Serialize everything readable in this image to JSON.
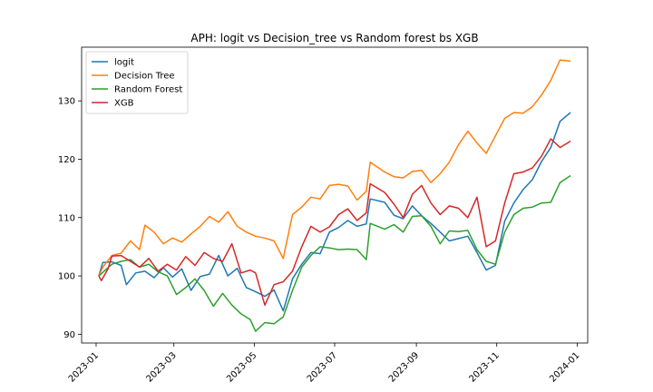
{
  "chart_data": {
    "type": "line",
    "title": "APH: logit vs Decision_tree vs Random forest bs XGB",
    "xlabel": "",
    "ylabel": "",
    "x_ticks": [
      "2023-01",
      "2023-03",
      "2023-05",
      "2023-07",
      "2023-09",
      "2023-11",
      "2024-01"
    ],
    "y_ticks": [
      90,
      100,
      110,
      120,
      130
    ],
    "xlim": [
      "2022-12-21",
      "2024-01-09"
    ],
    "ylim": [
      88.5,
      139.2
    ],
    "grid": false,
    "legend_position": "top-left",
    "series": [
      {
        "name": "logit",
        "color": "#1f77b4",
        "points": [
          [
            "2023-01-03",
            100
          ],
          [
            "2023-01-06",
            102.3
          ],
          [
            "2023-01-13",
            102.4
          ],
          [
            "2023-01-20",
            101.8
          ],
          [
            "2023-01-24",
            98.5
          ],
          [
            "2023-01-31",
            100.5
          ],
          [
            "2023-02-07",
            100.8
          ],
          [
            "2023-02-14",
            99.7
          ],
          [
            "2023-02-21",
            101.4
          ],
          [
            "2023-02-28",
            99.8
          ],
          [
            "2023-03-07",
            101.2
          ],
          [
            "2023-03-14",
            97.5
          ],
          [
            "2023-03-21",
            99.9
          ],
          [
            "2023-03-28",
            100.3
          ],
          [
            "2023-04-04",
            103.5
          ],
          [
            "2023-04-11",
            100.0
          ],
          [
            "2023-04-18",
            101.3
          ],
          [
            "2023-04-25",
            98.0
          ],
          [
            "2023-05-02",
            97.3
          ],
          [
            "2023-05-09",
            96.5
          ],
          [
            "2023-05-16",
            97.6
          ],
          [
            "2023-05-23",
            94.0
          ],
          [
            "2023-05-30",
            99.5
          ],
          [
            "2023-06-06",
            102.0
          ],
          [
            "2023-06-13",
            104.0
          ],
          [
            "2023-06-20",
            103.8
          ],
          [
            "2023-06-27",
            107.5
          ],
          [
            "2023-07-04",
            108.3
          ],
          [
            "2023-07-11",
            109.5
          ],
          [
            "2023-07-18",
            108.5
          ],
          [
            "2023-07-25",
            108.9
          ],
          [
            "2023-07-28",
            113.2
          ],
          [
            "2023-08-08",
            112.6
          ],
          [
            "2023-08-15",
            110.4
          ],
          [
            "2023-08-22",
            109.8
          ],
          [
            "2023-08-29",
            112.0
          ],
          [
            "2023-09-05",
            110.3
          ],
          [
            "2023-09-12",
            109.0
          ],
          [
            "2023-09-19",
            107.5
          ],
          [
            "2023-09-26",
            106.0
          ],
          [
            "2023-10-03",
            106.4
          ],
          [
            "2023-10-10",
            106.8
          ],
          [
            "2023-10-17",
            104.0
          ],
          [
            "2023-10-24",
            101.0
          ],
          [
            "2023-10-31",
            101.8
          ],
          [
            "2023-11-07",
            109.4
          ],
          [
            "2023-11-14",
            112.5
          ],
          [
            "2023-11-21",
            114.8
          ],
          [
            "2023-11-28",
            116.5
          ],
          [
            "2023-12-05",
            119.6
          ],
          [
            "2023-12-12",
            122.0
          ],
          [
            "2023-12-19",
            126.5
          ],
          [
            "2023-12-27",
            128.0
          ]
        ]
      },
      {
        "name": "Decision Tree",
        "color": "#ff7f0e",
        "points": [
          [
            "2023-01-03",
            100
          ],
          [
            "2023-01-06",
            101.5
          ],
          [
            "2023-01-13",
            103.5
          ],
          [
            "2023-01-20",
            103.9
          ],
          [
            "2023-01-27",
            106.0
          ],
          [
            "2023-02-03",
            104.5
          ],
          [
            "2023-02-07",
            108.7
          ],
          [
            "2023-02-14",
            107.5
          ],
          [
            "2023-02-21",
            105.5
          ],
          [
            "2023-02-28",
            106.5
          ],
          [
            "2023-03-07",
            105.8
          ],
          [
            "2023-03-14",
            107.2
          ],
          [
            "2023-03-21",
            108.5
          ],
          [
            "2023-03-28",
            110.2
          ],
          [
            "2023-04-04",
            109.2
          ],
          [
            "2023-04-11",
            111.0
          ],
          [
            "2023-04-18",
            108.5
          ],
          [
            "2023-04-25",
            107.5
          ],
          [
            "2023-05-02",
            106.8
          ],
          [
            "2023-05-09",
            106.5
          ],
          [
            "2023-05-16",
            106.0
          ],
          [
            "2023-05-23",
            103.0
          ],
          [
            "2023-05-30",
            110.5
          ],
          [
            "2023-06-06",
            111.8
          ],
          [
            "2023-06-13",
            113.5
          ],
          [
            "2023-06-20",
            113.2
          ],
          [
            "2023-06-27",
            115.5
          ],
          [
            "2023-07-04",
            115.7
          ],
          [
            "2023-07-11",
            115.4
          ],
          [
            "2023-07-18",
            113.0
          ],
          [
            "2023-07-25",
            114.5
          ],
          [
            "2023-07-28",
            119.5
          ],
          [
            "2023-08-08",
            117.8
          ],
          [
            "2023-08-15",
            117.0
          ],
          [
            "2023-08-22",
            116.8
          ],
          [
            "2023-08-29",
            117.9
          ],
          [
            "2023-09-05",
            118.1
          ],
          [
            "2023-09-12",
            116.0
          ],
          [
            "2023-09-19",
            117.5
          ],
          [
            "2023-09-26",
            119.5
          ],
          [
            "2023-10-03",
            122.5
          ],
          [
            "2023-10-10",
            124.8
          ],
          [
            "2023-10-17",
            122.8
          ],
          [
            "2023-10-24",
            121.0
          ],
          [
            "2023-10-31",
            124.0
          ],
          [
            "2023-11-07",
            127.0
          ],
          [
            "2023-11-14",
            128.0
          ],
          [
            "2023-11-21",
            127.9
          ],
          [
            "2023-11-28",
            129.0
          ],
          [
            "2023-12-05",
            131.0
          ],
          [
            "2023-12-12",
            133.5
          ],
          [
            "2023-12-19",
            137.0
          ],
          [
            "2023-12-27",
            136.8
          ]
        ]
      },
      {
        "name": "Random Forest",
        "color": "#2ca02c",
        "points": [
          [
            "2023-01-03",
            100
          ],
          [
            "2023-01-06",
            100.6
          ],
          [
            "2023-01-13",
            102.0
          ],
          [
            "2023-01-20",
            102.5
          ],
          [
            "2023-01-27",
            102.8
          ],
          [
            "2023-02-03",
            101.5
          ],
          [
            "2023-02-10",
            102.0
          ],
          [
            "2023-02-17",
            100.7
          ],
          [
            "2023-02-24",
            100.0
          ],
          [
            "2023-03-03",
            96.8
          ],
          [
            "2023-03-10",
            98.0
          ],
          [
            "2023-03-17",
            99.5
          ],
          [
            "2023-03-24",
            97.5
          ],
          [
            "2023-03-31",
            94.8
          ],
          [
            "2023-04-07",
            97.0
          ],
          [
            "2023-04-14",
            95.0
          ],
          [
            "2023-04-21",
            93.5
          ],
          [
            "2023-04-28",
            92.5
          ],
          [
            "2023-05-02",
            90.5
          ],
          [
            "2023-05-09",
            92.0
          ],
          [
            "2023-05-16",
            91.8
          ],
          [
            "2023-05-23",
            93.0
          ],
          [
            "2023-05-30",
            97.5
          ],
          [
            "2023-06-06",
            101.5
          ],
          [
            "2023-06-13",
            103.5
          ],
          [
            "2023-06-20",
            105.0
          ],
          [
            "2023-06-27",
            104.8
          ],
          [
            "2023-07-04",
            104.5
          ],
          [
            "2023-07-11",
            104.6
          ],
          [
            "2023-07-18",
            104.5
          ],
          [
            "2023-07-25",
            102.8
          ],
          [
            "2023-07-28",
            109.0
          ],
          [
            "2023-08-08",
            108.0
          ],
          [
            "2023-08-15",
            108.8
          ],
          [
            "2023-08-22",
            107.5
          ],
          [
            "2023-08-29",
            110.2
          ],
          [
            "2023-09-05",
            110.3
          ],
          [
            "2023-09-12",
            108.5
          ],
          [
            "2023-09-19",
            105.5
          ],
          [
            "2023-09-26",
            107.7
          ],
          [
            "2023-10-03",
            107.6
          ],
          [
            "2023-10-10",
            107.8
          ],
          [
            "2023-10-17",
            104.5
          ],
          [
            "2023-10-24",
            102.5
          ],
          [
            "2023-10-31",
            102.0
          ],
          [
            "2023-11-07",
            107.5
          ],
          [
            "2023-11-14",
            110.5
          ],
          [
            "2023-11-21",
            111.6
          ],
          [
            "2023-11-28",
            111.8
          ],
          [
            "2023-12-05",
            112.5
          ],
          [
            "2023-12-12",
            112.6
          ],
          [
            "2023-12-19",
            116.0
          ],
          [
            "2023-12-27",
            117.2
          ]
        ]
      },
      {
        "name": "XGB",
        "color": "#d62728",
        "points": [
          [
            "2023-01-03",
            100
          ],
          [
            "2023-01-05",
            99.2
          ],
          [
            "2023-01-10",
            101.2
          ],
          [
            "2023-01-13",
            103.4
          ],
          [
            "2023-01-20",
            103.5
          ],
          [
            "2023-01-27",
            102.5
          ],
          [
            "2023-02-03",
            101.5
          ],
          [
            "2023-02-10",
            103.0
          ],
          [
            "2023-02-17",
            100.8
          ],
          [
            "2023-02-24",
            102.0
          ],
          [
            "2023-03-03",
            101.0
          ],
          [
            "2023-03-10",
            103.3
          ],
          [
            "2023-03-17",
            101.8
          ],
          [
            "2023-03-24",
            104.0
          ],
          [
            "2023-03-31",
            103.0
          ],
          [
            "2023-04-07",
            102.5
          ],
          [
            "2023-04-14",
            105.5
          ],
          [
            "2023-04-21",
            100.5
          ],
          [
            "2023-04-28",
            101.0
          ],
          [
            "2023-05-02",
            100.5
          ],
          [
            "2023-05-09",
            95.0
          ],
          [
            "2023-05-16",
            98.5
          ],
          [
            "2023-05-23",
            99.0
          ],
          [
            "2023-05-30",
            100.8
          ],
          [
            "2023-06-06",
            105.0
          ],
          [
            "2023-06-13",
            108.5
          ],
          [
            "2023-06-20",
            107.5
          ],
          [
            "2023-06-27",
            108.4
          ],
          [
            "2023-07-04",
            110.5
          ],
          [
            "2023-07-11",
            111.5
          ],
          [
            "2023-07-18",
            109.5
          ],
          [
            "2023-07-25",
            110.8
          ],
          [
            "2023-07-28",
            115.8
          ],
          [
            "2023-08-08",
            114.3
          ],
          [
            "2023-08-15",
            112.3
          ],
          [
            "2023-08-22",
            110.0
          ],
          [
            "2023-08-29",
            114.0
          ],
          [
            "2023-09-05",
            115.5
          ],
          [
            "2023-09-12",
            112.5
          ],
          [
            "2023-09-19",
            110.5
          ],
          [
            "2023-09-26",
            112.0
          ],
          [
            "2023-10-03",
            111.6
          ],
          [
            "2023-10-10",
            110.0
          ],
          [
            "2023-10-17",
            113.5
          ],
          [
            "2023-10-24",
            105.0
          ],
          [
            "2023-10-31",
            106.0
          ],
          [
            "2023-11-07",
            112.5
          ],
          [
            "2023-11-14",
            117.5
          ],
          [
            "2023-11-21",
            117.8
          ],
          [
            "2023-11-28",
            118.5
          ],
          [
            "2023-12-05",
            120.5
          ],
          [
            "2023-12-12",
            123.5
          ],
          [
            "2023-12-19",
            122.0
          ],
          [
            "2023-12-27",
            123.1
          ]
        ]
      }
    ]
  }
}
